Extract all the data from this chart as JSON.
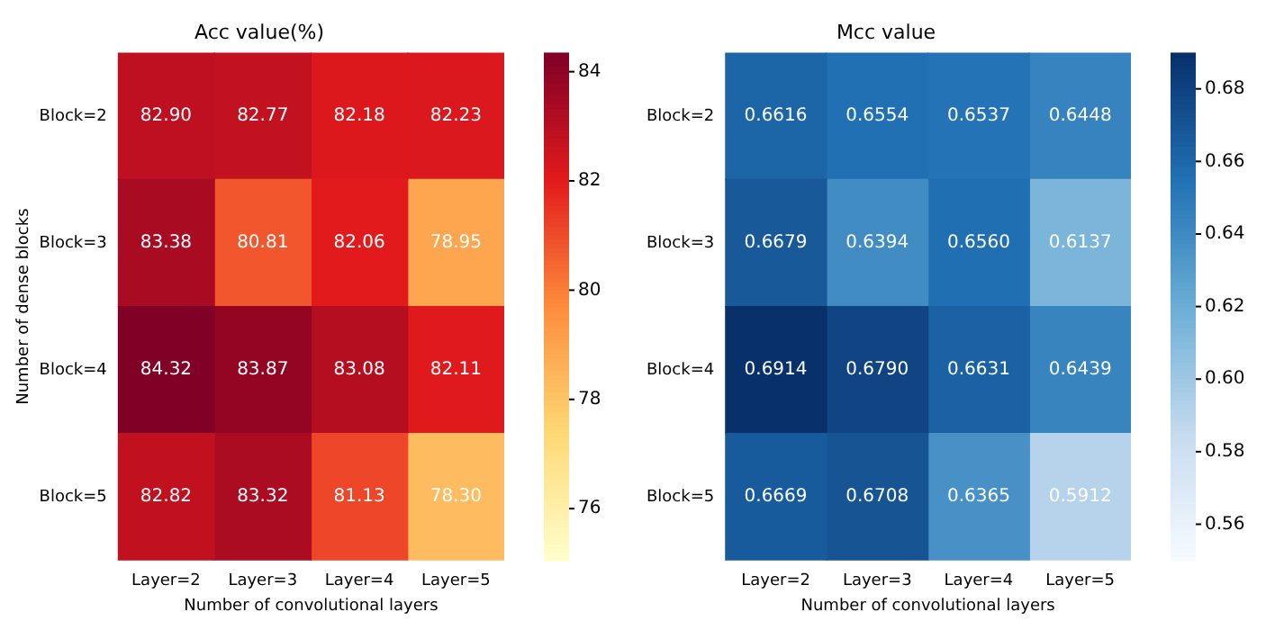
{
  "chart_data": [
    {
      "type": "heatmap",
      "title": "Acc value(%)",
      "xlabel": "Number of convolutional layers",
      "ylabel": "Number of dense blocks",
      "categories": [
        "Layer=2",
        "Layer=3",
        "Layer=4",
        "Layer=5"
      ],
      "y_categories": [
        "Block=2",
        "Block=3",
        "Block=4",
        "Block=5"
      ],
      "cells": [
        [
          82.9,
          82.77,
          82.18,
          82.23
        ],
        [
          83.38,
          80.81,
          82.06,
          78.95
        ],
        [
          84.32,
          83.87,
          83.08,
          82.11
        ],
        [
          82.82,
          83.32,
          81.13,
          78.3
        ]
      ],
      "cell_labels": [
        [
          "82.90",
          "82.77",
          "82.18",
          "82.23"
        ],
        [
          "83.38",
          "80.81",
          "82.06",
          "78.95"
        ],
        [
          "84.32",
          "83.87",
          "83.08",
          "82.11"
        ],
        [
          "82.82",
          "83.32",
          "81.13",
          "78.30"
        ]
      ],
      "clim": [
        75.05,
        84.35
      ],
      "cticks": [
        76,
        78,
        80,
        82,
        84
      ]
    },
    {
      "type": "heatmap",
      "title": "Mcc value",
      "xlabel": "Number of convolutional layers",
      "categories": [
        "Layer=2",
        "Layer=3",
        "Layer=4",
        "Layer=5"
      ],
      "y_categories": [
        "Block=2",
        "Block=3",
        "Block=4",
        "Block=5"
      ],
      "cells": [
        [
          0.6616,
          0.6554,
          0.6537,
          0.6448
        ],
        [
          0.6679,
          0.6394,
          0.656,
          0.6137
        ],
        [
          0.6914,
          0.679,
          0.6631,
          0.6439
        ],
        [
          0.6669,
          0.6708,
          0.6365,
          0.5912
        ]
      ],
      "cell_labels": [
        [
          "0.6616",
          "0.6554",
          "0.6537",
          "0.6448"
        ],
        [
          "0.6679",
          "0.6394",
          "0.6560",
          "0.6137"
        ],
        [
          "0.6914",
          "0.6790",
          "0.6631",
          "0.6439"
        ],
        [
          "0.6669",
          "0.6708",
          "0.6365",
          "0.5912"
        ]
      ],
      "clim": [
        0.55,
        0.69
      ],
      "cticks": [
        {
          "value": 0.56,
          "label": "0.56"
        },
        {
          "value": 0.58,
          "label": "0.58"
        },
        {
          "value": 0.6,
          "label": "0.60"
        },
        {
          "value": 0.62,
          "label": "0.62"
        },
        {
          "value": 0.64,
          "label": "0.64"
        },
        {
          "value": 0.66,
          "label": "0.66"
        },
        {
          "value": 0.68,
          "label": "0.68"
        }
      ]
    }
  ]
}
